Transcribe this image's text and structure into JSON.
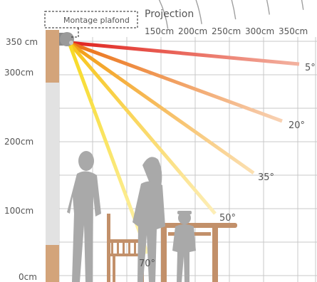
{
  "mount_label": "Montage plafond",
  "projection_title": "Projection",
  "projection_ticks": [
    "150cm",
    "200cm",
    "250cm",
    "300cm",
    "350cm"
  ],
  "height_ticks": [
    "350 cm",
    "300cm",
    "200cm",
    "100cm",
    "0cm"
  ],
  "angles": [
    {
      "label": "5°",
      "degrees": 5,
      "color": "#e0201c"
    },
    {
      "label": "20°",
      "degrees": 20,
      "color": "#ea6f12"
    },
    {
      "label": "35°",
      "degrees": 35,
      "color": "#f29b10"
    },
    {
      "label": "50°",
      "degrees": 50,
      "color": "#f7c417"
    },
    {
      "label": "70°",
      "degrees": 70,
      "color": "#f7d91f"
    }
  ],
  "colors": {
    "grid": "#c8c8c8",
    "arc": "#a0a0a0",
    "wall_wood": "#d3a47a",
    "wall_light": "#e2e2e2",
    "figure": "#a9a9a9",
    "furniture": "#c2906a",
    "lamp": "#9a9a9a",
    "text": "#555555"
  }
}
